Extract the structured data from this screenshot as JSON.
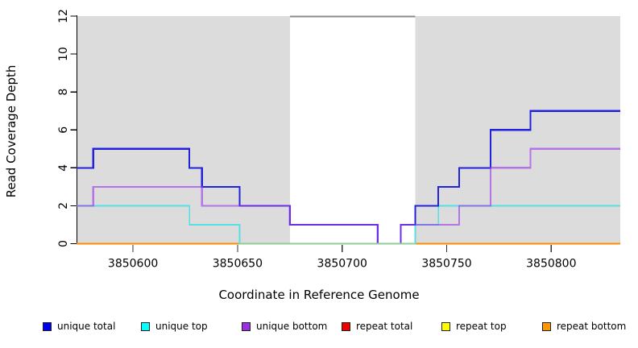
{
  "chart_data": {
    "type": "line",
    "step": true,
    "title": "",
    "xlabel": "Coordinate in Reference Genome",
    "ylabel": "Read Coverage Depth",
    "xlim": [
      3850573,
      3850833
    ],
    "ylim": [
      0,
      12
    ],
    "xticks": [
      "3850600",
      "3850650",
      "3850700",
      "3850750",
      "3850800"
    ],
    "xtick_values": [
      3850600,
      3850650,
      3850700,
      3850750,
      3850800
    ],
    "yticks": [
      "0",
      "2",
      "4",
      "6",
      "8",
      "10",
      "12"
    ],
    "ytick_values": [
      0,
      2,
      4,
      6,
      8,
      10,
      12
    ],
    "grid": false,
    "legend_position": "bottom",
    "plot_bg_color": "#ffffff",
    "shaded_region_color": "#DCDCDC",
    "gap_region_border_color": "#8A8A8A",
    "shaded_regions": [
      {
        "x0": 3850573,
        "x1": 3850675
      },
      {
        "x0": 3850735,
        "x1": 3850833
      }
    ],
    "gap_region": {
      "x0": 3850675,
      "x1": 3850735
    },
    "series": [
      {
        "name": "unique total",
        "line_color": "#2222DD",
        "swatch_color": "#0000EE",
        "line_width": 2.1,
        "opacity": 1,
        "breakpoints": [
          [
            3850573,
            4
          ],
          [
            3850581,
            5
          ],
          [
            3850627,
            4
          ],
          [
            3850633,
            3
          ],
          [
            3850651,
            2
          ],
          [
            3850675,
            1
          ],
          [
            3850717,
            0
          ],
          [
            3850728,
            1
          ],
          [
            3850735,
            2
          ],
          [
            3850746,
            3
          ],
          [
            3850756,
            4
          ],
          [
            3850771,
            6
          ],
          [
            3850790,
            7
          ]
        ]
      },
      {
        "name": "unique top",
        "line_color": "#55E0E5",
        "swatch_color": "#00FFFF",
        "line_width": 1.7,
        "opacity": 1,
        "breakpoints": [
          [
            3850573,
            2
          ],
          [
            3850627,
            1
          ],
          [
            3850651,
            0
          ],
          [
            3850735,
            1
          ],
          [
            3850746,
            2
          ]
        ]
      },
      {
        "name": "unique bottom",
        "line_color": "#9933EE",
        "swatch_color": "#9A30E0",
        "line_width": 2.2,
        "opacity": 0.62,
        "breakpoints": [
          [
            3850573,
            2
          ],
          [
            3850581,
            3
          ],
          [
            3850633,
            2
          ],
          [
            3850675,
            1
          ],
          [
            3850717,
            0
          ],
          [
            3850728,
            1
          ],
          [
            3850756,
            2
          ],
          [
            3850771,
            4
          ],
          [
            3850790,
            5
          ]
        ]
      },
      {
        "name": "repeat total",
        "line_color": "#EE0000",
        "swatch_color": "#EE0000",
        "line_width": 1.7,
        "opacity": 1,
        "breakpoints": [
          [
            3850573,
            0
          ]
        ]
      },
      {
        "name": "repeat top",
        "line_color": "#FFFF00",
        "swatch_color": "#FFFF00",
        "line_width": 1.7,
        "opacity": 1,
        "breakpoints": [
          [
            3850573,
            0
          ]
        ]
      },
      {
        "name": "repeat bottom",
        "line_color": "#FF8C00",
        "swatch_color": "#FF9800",
        "line_width": 1.8,
        "opacity": 1,
        "breakpoints": [
          [
            3850573,
            0
          ]
        ]
      }
    ],
    "draw_order": [
      "repeat total",
      "repeat top",
      "repeat bottom",
      "unique top",
      "unique total",
      "unique bottom"
    ],
    "baseline_overlap_segment": {
      "x0": 3850651,
      "x1": 3850735,
      "y": 0,
      "color": "#8FCE96",
      "line_width": 1.8
    },
    "legend": [
      {
        "label": "unique total"
      },
      {
        "label": "unique top"
      },
      {
        "label": "unique bottom"
      },
      {
        "label": "repeat total"
      },
      {
        "label": "repeat top"
      },
      {
        "label": "repeat bottom"
      }
    ]
  }
}
